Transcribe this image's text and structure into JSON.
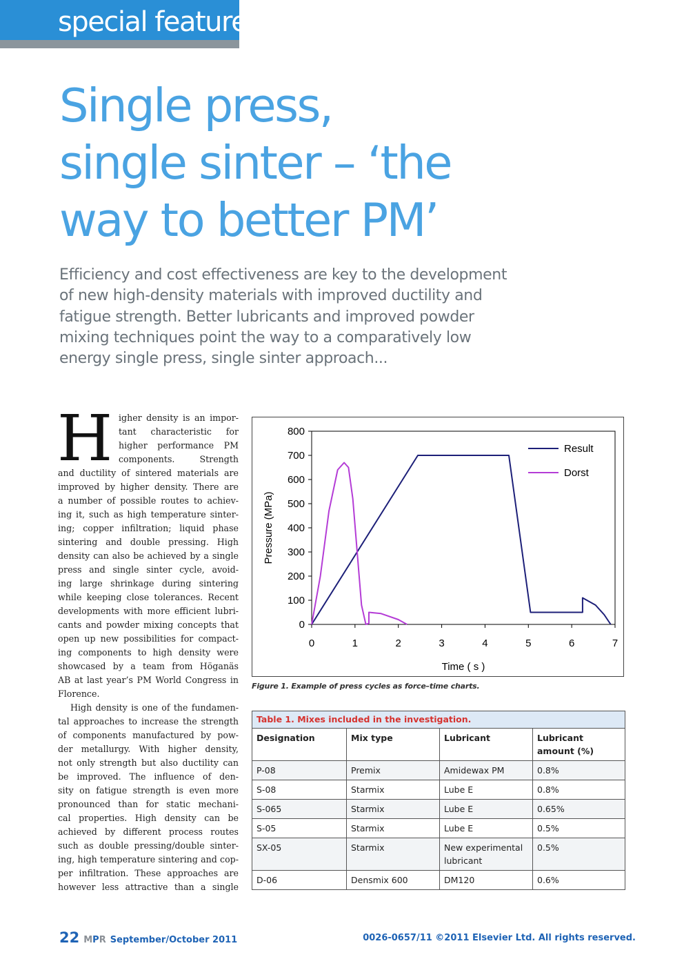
{
  "header": {
    "section_tab": "special feature"
  },
  "title_lines": [
    "Single press,",
    "single sinter – ‘the",
    "way to better PM’"
  ],
  "standfirst_lines": [
    "Efficiency and cost effectiveness are key to the development",
    "of new high-density materials with improved ductility and",
    "fatigue strength. Better lubricants and improved powder",
    "mixing techniques point the way to a comparatively low",
    "energy single press, single sinter approach..."
  ],
  "body": {
    "dropcap": "H",
    "lines": [
      "igher density is an impor-",
      "tant characteristic for",
      "higher performance PM",
      "components. Strength",
      "and ductility of sintered materials are",
      "improved by higher density. There are",
      "a number of possible routes to achiev-",
      "ing it, such as high temperature sinter-",
      "ing; copper infiltration; liquid phase",
      "sintering and double pressing. High",
      "density can also be achieved by a single",
      "press and single sinter cycle, avoid-",
      "ing large shrinkage during sintering",
      "while keeping close tolerances. Recent",
      "developments with more efficient lubri-",
      "cants and powder mixing concepts that",
      "open up new possibilities for compact-",
      "ing components to high density were",
      "showcased by a team from Höganäs",
      "AB at last year’s PM World Congress in",
      "Florence.",
      "High density is one of the fundamen-",
      "tal approaches to increase the strength",
      "of components manufactured by pow-",
      "der metallurgy. With higher density,",
      "not only strength but also ductility can",
      "be improved. The influence of den-",
      "sity on fatigue strength is even more",
      "pronounced than for static mechani-",
      "cal properties. High density can be",
      "achieved by different process routes",
      "such as double pressing/double sinter-",
      "ing, high temperature sintering and cop-",
      "per infiltration. These approaches are",
      "however less attractive than a single"
    ]
  },
  "chart_data": {
    "type": "line",
    "title": "",
    "xlabel": "Time ( s )",
    "ylabel": "Pressure (MPa)",
    "xlim": [
      0,
      7
    ],
    "ylim": [
      0,
      800
    ],
    "x_ticks": [
      "0",
      "1",
      "2",
      "3",
      "4",
      "5",
      "6",
      "7"
    ],
    "y_ticks": [
      "0",
      "100",
      "200",
      "300",
      "400",
      "500",
      "600",
      "700",
      "800"
    ],
    "legend_position": "top-right",
    "series": [
      {
        "name": "Result",
        "color": "#1c1f78",
        "points": [
          [
            0,
            0
          ],
          [
            2.45,
            700
          ],
          [
            4.55,
            700
          ],
          [
            5.05,
            50
          ],
          [
            6.25,
            50
          ],
          [
            6.25,
            110
          ],
          [
            6.55,
            80
          ],
          [
            6.75,
            40
          ],
          [
            6.9,
            0
          ]
        ]
      },
      {
        "name": "Dorst",
        "color": "#b43cd6",
        "points": [
          [
            0,
            0
          ],
          [
            0.2,
            200
          ],
          [
            0.4,
            470
          ],
          [
            0.6,
            640
          ],
          [
            0.75,
            670
          ],
          [
            0.85,
            650
          ],
          [
            0.95,
            520
          ],
          [
            1.05,
            300
          ],
          [
            1.15,
            80
          ],
          [
            1.25,
            0
          ],
          [
            1.32,
            5
          ],
          [
            1.32,
            50
          ],
          [
            1.6,
            45
          ],
          [
            2.0,
            20
          ],
          [
            2.2,
            0
          ]
        ]
      }
    ]
  },
  "figure_caption": "Figure 1. Example of press cycles as force–time charts.",
  "table": {
    "caption": "Table 1. Mixes included in the investigation.",
    "headers": [
      "Designation",
      "Mix type",
      "Lubricant",
      "Lubricant amount (%)"
    ],
    "rows": [
      [
        "P-08",
        "Premix",
        "Amidewax PM",
        "0.8%"
      ],
      [
        "S-08",
        "Starmix",
        "Lube E",
        "0.8%"
      ],
      [
        "S-065",
        "Starmix",
        "Lube E",
        "0.65%"
      ],
      [
        "S-05",
        "Starmix",
        "Lube E",
        "0.5%"
      ],
      [
        "SX-05",
        "Starmix",
        "New experimental lubricant",
        "0.5%"
      ],
      [
        "D-06",
        "Densmix 600",
        "DM120",
        "0.6%"
      ]
    ]
  },
  "footer": {
    "page_number": "22",
    "mpr_m": "M",
    "mpr_p": "P",
    "mpr_r": "R",
    "issue": "September/October 2011",
    "copyright": "0026-0657/11 ©2011 Elsevier Ltd. All rights reserved."
  }
}
